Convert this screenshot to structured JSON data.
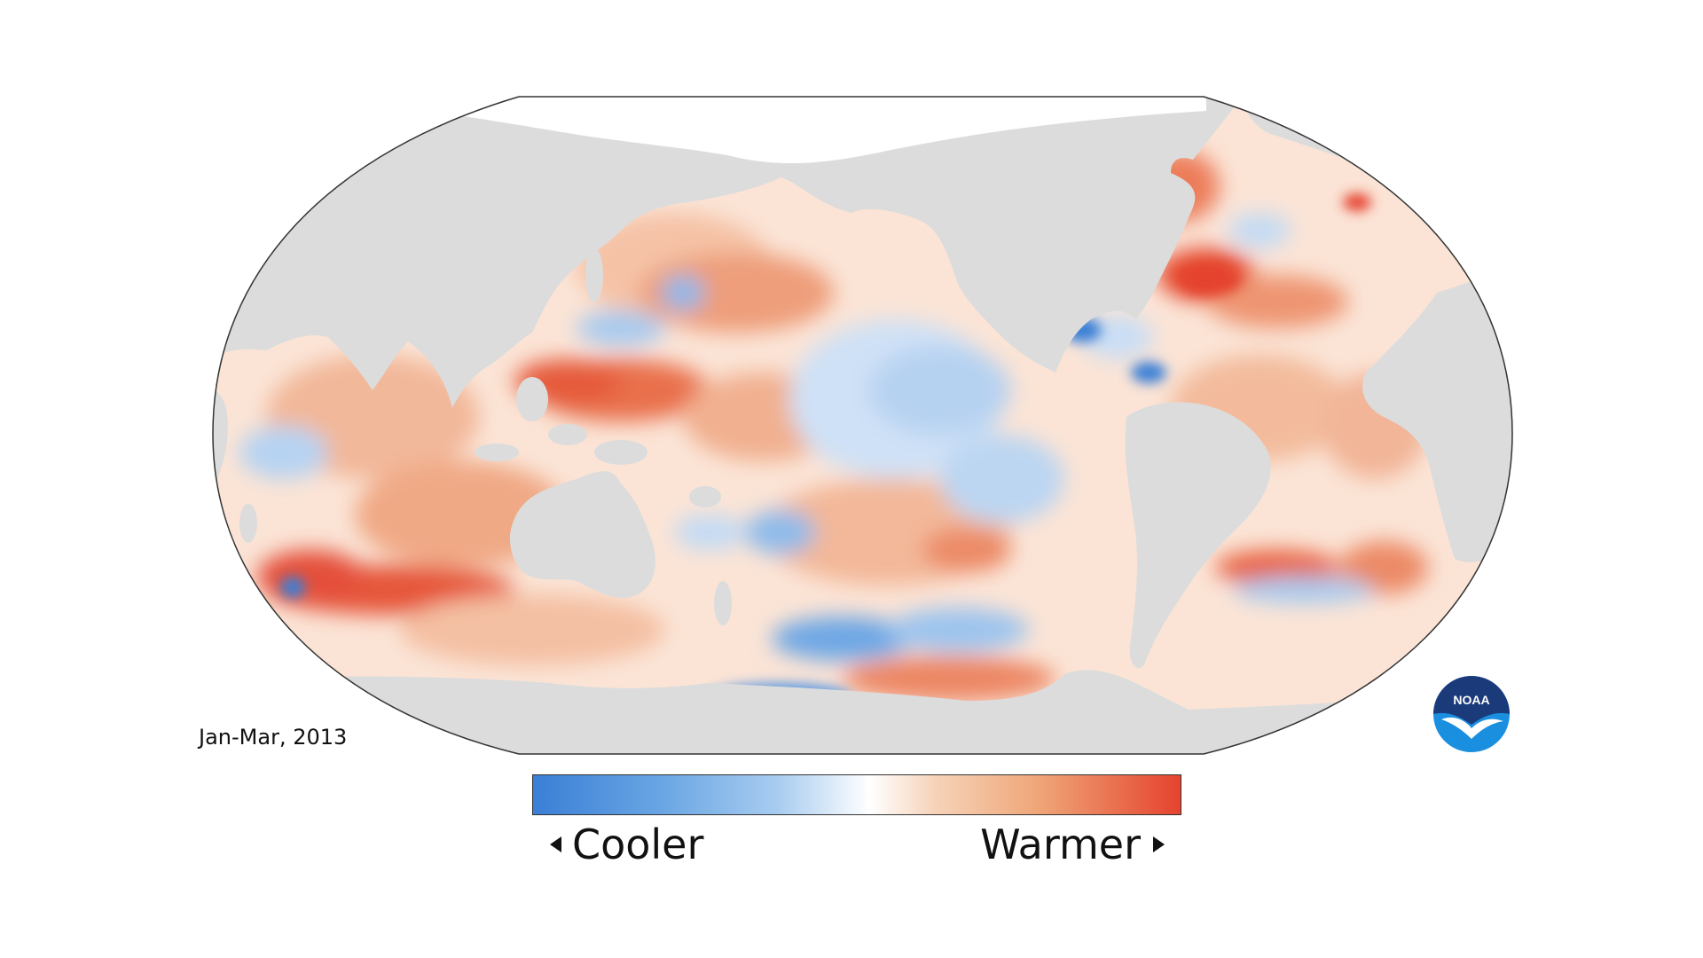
{
  "period": "Jan-Mar, 2013",
  "legend": {
    "low_label": "Cooler",
    "high_label": "Warmer",
    "colors": [
      "#3a7fd6",
      "#9cc6ee",
      "#ffffff",
      "#f4c4a0",
      "#e5432e"
    ]
  },
  "logo": {
    "text": "NOAA",
    "colors": [
      "#1b3a7a",
      "#1a8fe0",
      "#ffffff"
    ]
  },
  "map": {
    "projection": "robinson",
    "ocean_base_color": "#fbe3d4",
    "land_color": "#dcdcdc",
    "sea_ice_color": "#ffffff"
  }
}
